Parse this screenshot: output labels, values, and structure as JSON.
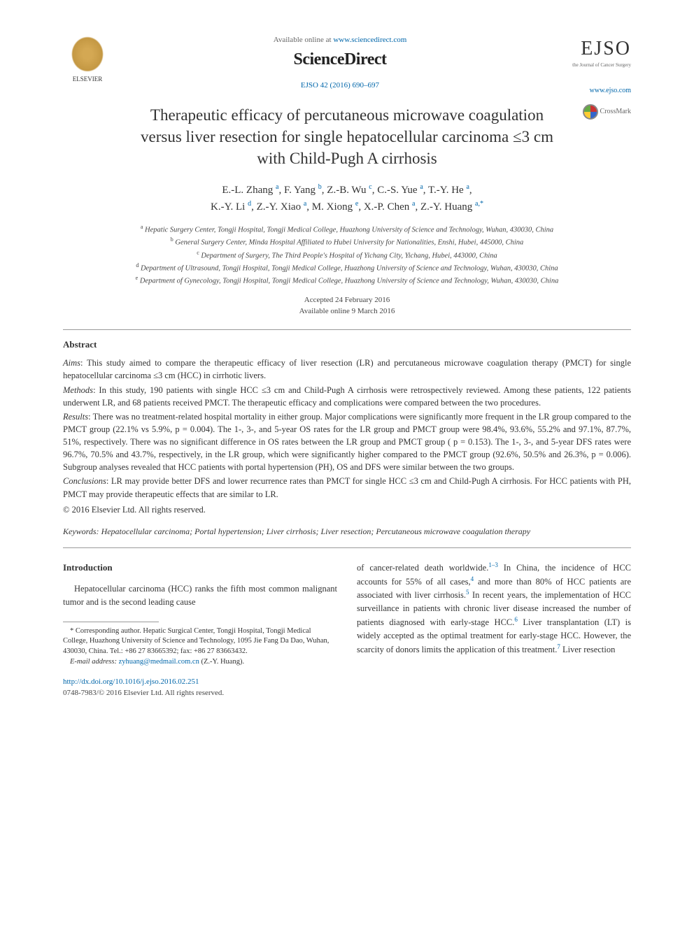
{
  "header": {
    "available_text": "Available online at ",
    "available_url": "www.sciencedirect.com",
    "sciencedirect": "ScienceDirect",
    "journal_ref": "EJSO 42 (2016) 690–697",
    "journal_logo": "EJSO",
    "journal_subtitle": "the Journal of Cancer Surgery",
    "journal_url": "www.ejso.com",
    "elsevier_label": "ELSEVIER"
  },
  "crossmark_label": "CrossMark",
  "title": "Therapeutic efficacy of percutaneous microwave coagulation versus liver resection for single hepatocellular carcinoma ≤3 cm with Child-Pugh A cirrhosis",
  "authors": [
    {
      "name": "E.-L. Zhang",
      "aff": "a"
    },
    {
      "name": "F. Yang",
      "aff": "b"
    },
    {
      "name": "Z.-B. Wu",
      "aff": "c"
    },
    {
      "name": "C.-S. Yue",
      "aff": "a"
    },
    {
      "name": "T.-Y. He",
      "aff": "a"
    },
    {
      "name": "K.-Y. Li",
      "aff": "d"
    },
    {
      "name": "Z.-Y. Xiao",
      "aff": "a"
    },
    {
      "name": "M. Xiong",
      "aff": "e"
    },
    {
      "name": "X.-P. Chen",
      "aff": "a"
    },
    {
      "name": "Z.-Y. Huang",
      "aff": "a,*"
    }
  ],
  "affiliations": [
    {
      "sup": "a",
      "text": "Hepatic Surgery Center, Tongji Hospital, Tongji Medical College, Huazhong University of Science and Technology, Wuhan, 430030, China"
    },
    {
      "sup": "b",
      "text": "General Surgery Center, Minda Hospital Affiliated to Hubei University for Nationalities, Enshi, Hubei, 445000, China"
    },
    {
      "sup": "c",
      "text": "Department of Surgery, The Third People's Hospital of Yichang City, Yichang, Hubei, 443000, China"
    },
    {
      "sup": "d",
      "text": "Department of Ultrasound, Tongji Hospital, Tongji Medical College, Huazhong University of Science and Technology, Wuhan, 430030, China"
    },
    {
      "sup": "e",
      "text": "Department of Gynecology, Tongji Hospital, Tongji Medical College, Huazhong University of Science and Technology, Wuhan, 430030, China"
    }
  ],
  "dates": {
    "accepted": "Accepted 24 February 2016",
    "online": "Available online 9 March 2016"
  },
  "abstract": {
    "heading": "Abstract",
    "aims_label": "Aims",
    "aims": ": This study aimed to compare the therapeutic efficacy of liver resection (LR) and percutaneous microwave coagulation therapy (PMCT) for single hepatocellular carcinoma ≤3 cm (HCC) in cirrhotic livers.",
    "methods_label": "Methods",
    "methods": ": In this study, 190 patients with single HCC ≤3 cm and Child-Pugh A cirrhosis were retrospectively reviewed. Among these patients, 122 patients underwent LR, and 68 patients received PMCT. The therapeutic efficacy and complications were compared between the two procedures.",
    "results_label": "Results",
    "results": ": There was no treatment-related hospital mortality in either group. Major complications were significantly more frequent in the LR group compared to the PMCT group (22.1% vs 5.9%, p = 0.004). The 1-, 3-, and 5-year OS rates for the LR group and PMCT group were 98.4%, 93.6%, 55.2% and 97.1%, 87.7%, 51%, respectively. There was no significant difference in OS rates between the LR group and PMCT group ( p = 0.153). The 1-, 3-, and 5-year DFS rates were 96.7%, 70.5% and 43.7%, respectively, in the LR group, which were significantly higher compared to the PMCT group (92.6%, 50.5% and 26.3%, p = 0.006). Subgroup analyses revealed that HCC patients with portal hypertension (PH), OS and DFS were similar between the two groups.",
    "conclusions_label": "Conclusions",
    "conclusions": ": LR may provide better DFS and lower recurrence rates than PMCT for single HCC ≤3 cm and Child-Pugh A cirrhosis. For HCC patients with PH, PMCT may provide therapeutic effects that are similar to LR.",
    "copyright": "© 2016 Elsevier Ltd. All rights reserved."
  },
  "keywords": {
    "label": "Keywords:",
    "text": " Hepatocellular carcinoma; Portal hypertension; Liver cirrhosis; Liver resection; Percutaneous microwave coagulation therapy"
  },
  "body": {
    "intro_heading": "Introduction",
    "intro_para": "Hepatocellular carcinoma (HCC) ranks the fifth most common malignant tumor and is the second leading cause",
    "col2_text_1": "of cancer-related death worldwide.",
    "col2_ref_1": "1–3",
    "col2_text_2": " In China, the incidence of HCC accounts for 55% of all cases,",
    "col2_ref_2": "4",
    "col2_text_3": " and more than 80% of HCC patients are associated with liver cirrhosis.",
    "col2_ref_3": "5",
    "col2_text_4": " In recent years, the implementation of HCC surveillance in patients with chronic liver disease increased the number of patients diagnosed with early-stage HCC.",
    "col2_ref_4": "6",
    "col2_text_5": " Liver transplantation (LT) is widely accepted as the optimal treatment for early-stage HCC. However, the scarcity of donors limits the application of this treatment.",
    "col2_ref_5": "7",
    "col2_text_6": " Liver resection"
  },
  "footnote": {
    "corr_label": "* Corresponding author.",
    "corr_text": " Hepatic Surgical Center, Tongji Hospital, Tongji Medical College, Huazhong University of Science and Technology, 1095 Jie Fang Da Dao, Wuhan, 430030, China. Tel.: +86 27 83665392; fax: +86 27 83663432.",
    "email_label": "E-mail address:",
    "email": " zyhuang@medmail.com.cn",
    "email_author": " (Z.-Y. Huang)."
  },
  "footer": {
    "doi": "http://dx.doi.org/10.1016/j.ejso.2016.02.251",
    "issn_line": "0748-7983/© 2016 Elsevier Ltd. All rights reserved."
  },
  "colors": {
    "link": "#0066aa",
    "text": "#333333",
    "rule": "#999999"
  }
}
